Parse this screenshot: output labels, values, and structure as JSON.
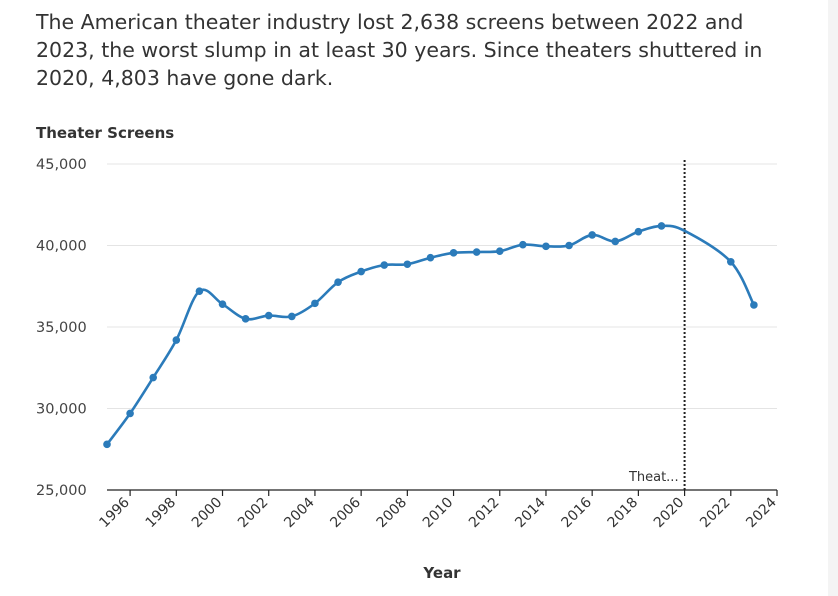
{
  "headline": "The American theater industry lost 2,638 screens between 2022 and 2023, the worst slump in at least 30 years. Since theaters shuttered in 2020, 4,803 have gone dark.",
  "chart_data": {
    "type": "line",
    "title": "",
    "xlabel": "Year",
    "ylabel": "Theater Screens",
    "xlim": [
      1995,
      2024
    ],
    "ylim": [
      25000,
      45000
    ],
    "y_ticks": [
      {
        "value": 25000,
        "label": "25,000"
      },
      {
        "value": 30000,
        "label": "30,000"
      },
      {
        "value": 35000,
        "label": "35,000"
      },
      {
        "value": 40000,
        "label": "40,000"
      },
      {
        "value": 45000,
        "label": "45,000"
      }
    ],
    "x_ticks": [
      {
        "value": 1996,
        "label": "1996"
      },
      {
        "value": 1998,
        "label": "1998"
      },
      {
        "value": 2000,
        "label": "2000"
      },
      {
        "value": 2002,
        "label": "2002"
      },
      {
        "value": 2004,
        "label": "2004"
      },
      {
        "value": 2006,
        "label": "2006"
      },
      {
        "value": 2008,
        "label": "2008"
      },
      {
        "value": 2010,
        "label": "2010"
      },
      {
        "value": 2012,
        "label": "2012"
      },
      {
        "value": 2014,
        "label": "2014"
      },
      {
        "value": 2016,
        "label": "2016"
      },
      {
        "value": 2018,
        "label": "2018"
      },
      {
        "value": 2020,
        "label": "2020"
      },
      {
        "value": 2022,
        "label": "2022"
      },
      {
        "value": 2024,
        "label": "2024"
      }
    ],
    "grid": true,
    "series": [
      {
        "color": "#2b7bba",
        "points": [
          {
            "x": 1995,
            "y": 27800,
            "marker": true
          },
          {
            "x": 1996,
            "y": 29700,
            "marker": true
          },
          {
            "x": 1997,
            "y": 31900,
            "marker": true
          },
          {
            "x": 1998,
            "y": 34200,
            "marker": true
          },
          {
            "x": 1999,
            "y": 37200,
            "marker": true
          },
          {
            "x": 2000,
            "y": 36400,
            "marker": true
          },
          {
            "x": 2001,
            "y": 35500,
            "marker": true
          },
          {
            "x": 2002,
            "y": 35700,
            "marker": true
          },
          {
            "x": 2003,
            "y": 35650,
            "marker": true
          },
          {
            "x": 2004,
            "y": 36450,
            "marker": true
          },
          {
            "x": 2005,
            "y": 37750,
            "marker": true
          },
          {
            "x": 2006,
            "y": 38400,
            "marker": true
          },
          {
            "x": 2007,
            "y": 38800,
            "marker": true
          },
          {
            "x": 2008,
            "y": 38850,
            "marker": true
          },
          {
            "x": 2009,
            "y": 39250,
            "marker": true
          },
          {
            "x": 2010,
            "y": 39550,
            "marker": true
          },
          {
            "x": 2011,
            "y": 39600,
            "marker": true
          },
          {
            "x": 2012,
            "y": 39650,
            "marker": true
          },
          {
            "x": 2013,
            "y": 40050,
            "marker": true
          },
          {
            "x": 2014,
            "y": 39950,
            "marker": true
          },
          {
            "x": 2015,
            "y": 40000,
            "marker": true
          },
          {
            "x": 2016,
            "y": 40650,
            "marker": true
          },
          {
            "x": 2017,
            "y": 40250,
            "marker": true
          },
          {
            "x": 2018,
            "y": 40850,
            "marker": true
          },
          {
            "x": 2019,
            "y": 41200,
            "marker": true
          },
          {
            "x": 2020,
            "y": 40900,
            "marker": false
          },
          {
            "x": 2022,
            "y": 39000,
            "marker": true
          },
          {
            "x": 2023,
            "y": 36350,
            "marker": true
          }
        ]
      }
    ],
    "annotations": [
      {
        "x": 2020,
        "label": "Theat...",
        "style": "dotted-vertical-line"
      }
    ]
  }
}
